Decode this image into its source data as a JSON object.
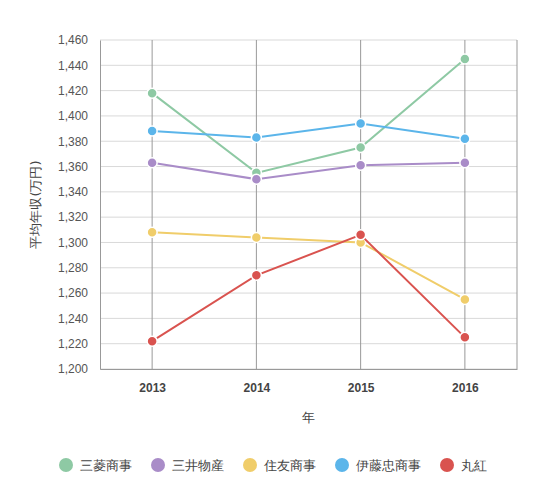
{
  "chart_data": {
    "type": "line",
    "x_label": "年",
    "y_label": "平均年収(万円)",
    "categories": [
      "2013",
      "2014",
      "2015",
      "2016"
    ],
    "series": [
      {
        "name": "三菱商事",
        "color": "#8ec9a4",
        "values": [
          1418,
          1355,
          1375,
          1445
        ]
      },
      {
        "name": "三井物産",
        "color": "#a98cc8",
        "values": [
          1363,
          1350,
          1361,
          1363
        ]
      },
      {
        "name": "住友商事",
        "color": "#f0cd6a",
        "values": [
          1308,
          1304,
          1300,
          1255
        ]
      },
      {
        "name": "伊藤忠商事",
        "color": "#5bb5ea",
        "values": [
          1388,
          1383,
          1394,
          1382
        ]
      },
      {
        "name": "丸紅",
        "color": "#d9534f",
        "values": [
          1222,
          1274,
          1306,
          1225
        ]
      }
    ],
    "ylim": [
      1200,
      1460
    ],
    "yticks": [
      {
        "value": 1200,
        "label": "1,200"
      },
      {
        "value": 1220,
        "label": "1,220"
      },
      {
        "value": 1240,
        "label": "1,240"
      },
      {
        "value": 1260,
        "label": "1,260"
      },
      {
        "value": 1280,
        "label": "1,280"
      },
      {
        "value": 1300,
        "label": "1,300"
      },
      {
        "value": 1320,
        "label": "1,320"
      },
      {
        "value": 1340,
        "label": "1,340"
      },
      {
        "value": 1360,
        "label": "1,360"
      },
      {
        "value": 1380,
        "label": "1,380"
      },
      {
        "value": 1400,
        "label": "1,400"
      },
      {
        "value": 1420,
        "label": "1,420"
      },
      {
        "value": 1440,
        "label": "1,440"
      },
      {
        "value": 1460,
        "label": "1,460"
      }
    ],
    "grid": true,
    "legend": "bottom",
    "marker": "circle"
  }
}
